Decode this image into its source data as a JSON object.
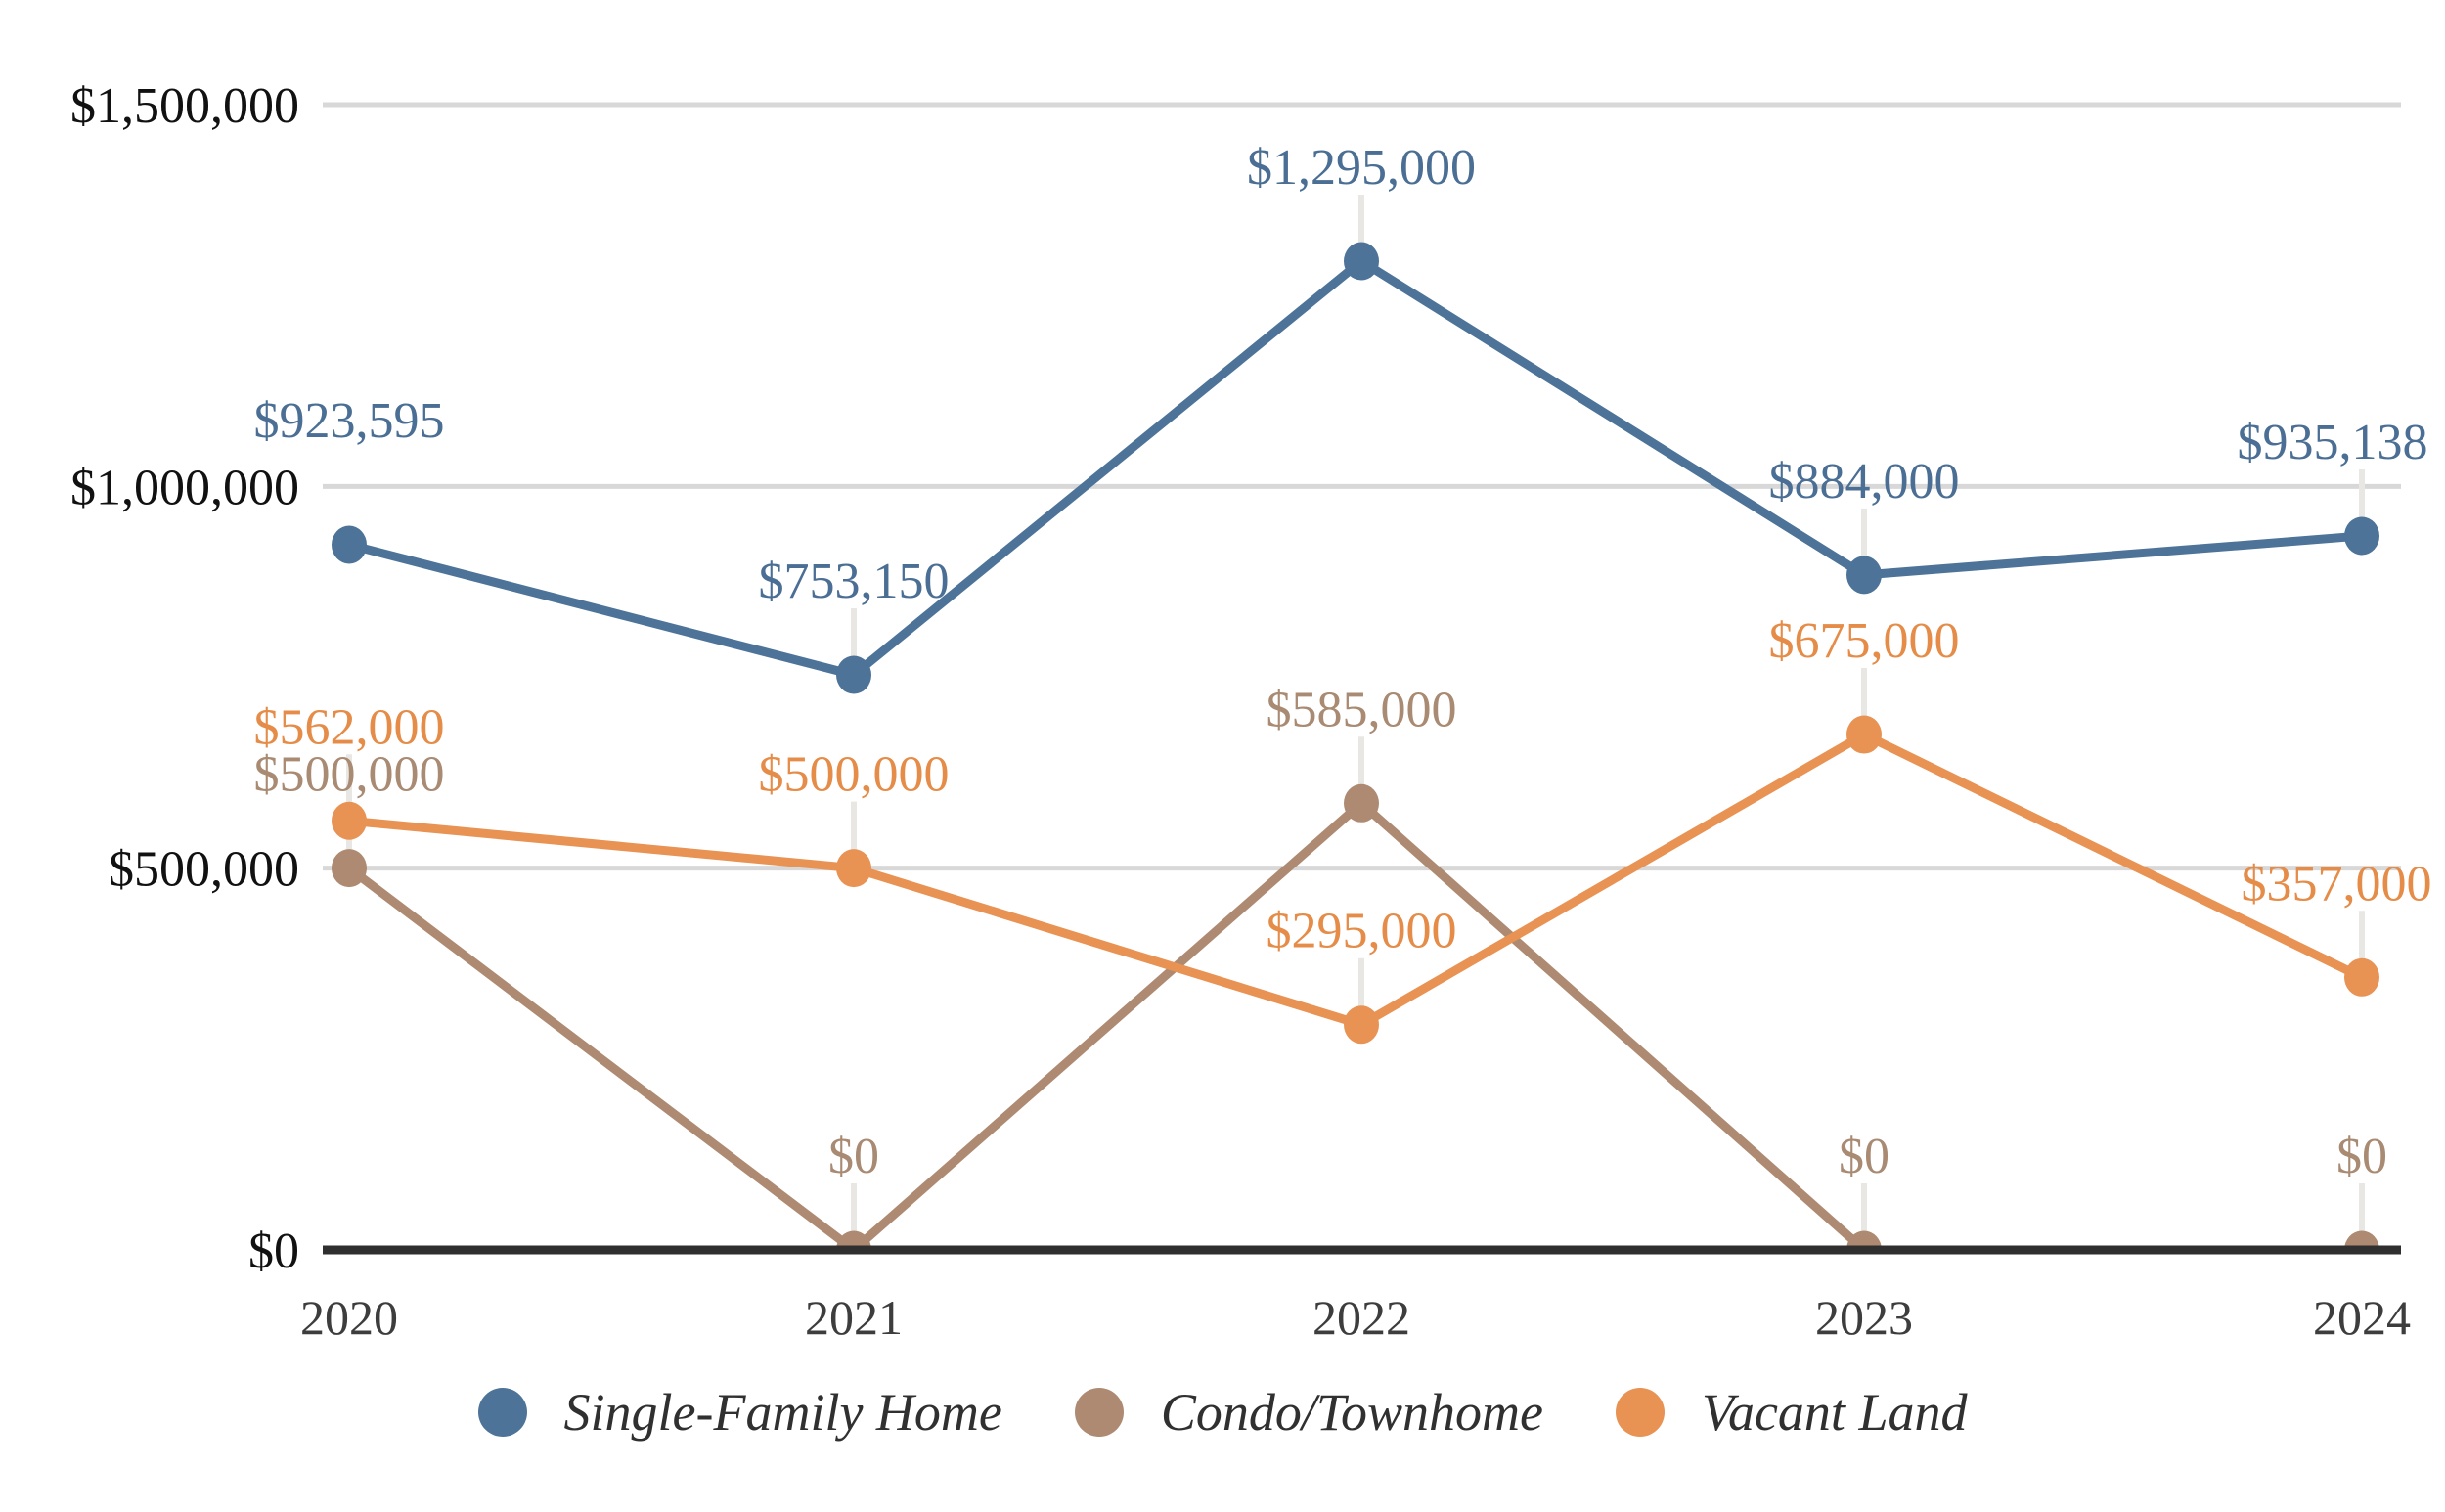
{
  "chart_data": {
    "type": "line",
    "title": "",
    "x_label": "",
    "y_label": "",
    "x": [
      "2020",
      "2021",
      "2022",
      "2023",
      "2024"
    ],
    "series": [
      {
        "name": "Single-Family Home",
        "values": [
          923595,
          753150,
          1295000,
          884000,
          935138
        ],
        "labels": [
          "$923,595",
          "$753,150",
          "$1,295,000",
          "$884,000",
          "$935,138"
        ],
        "color": "#4D7399",
        "label_color": "#4A6E94"
      },
      {
        "name": "Condo/Townhome",
        "values": [
          500000,
          0,
          585000,
          0,
          0
        ],
        "labels": [
          "$500,000",
          "$0",
          "$585,000",
          "$0",
          "$0"
        ],
        "color": "#AD8A71",
        "label_color": "#A98A72"
      },
      {
        "name": "Vacant Land",
        "values": [
          562000,
          500000,
          295000,
          675000,
          357000
        ],
        "labels": [
          "$562,000",
          "$500,000",
          "$295,000",
          "$675,000",
          "$357,000"
        ],
        "color": "#E89254",
        "label_color": "#E58C48"
      }
    ],
    "y_axis": {
      "min": 0,
      "max": 1500000,
      "ticks": [
        {
          "value": 0,
          "label": "$0"
        },
        {
          "value": 500000,
          "label": "$500,000"
        },
        {
          "value": 1000000,
          "label": "$1,000,000"
        },
        {
          "value": 1500000,
          "label": "$1,500,000"
        }
      ]
    },
    "grid": true,
    "legend_position": "bottom",
    "data_labels": true
  },
  "colors": {
    "background": "#FFFFFF",
    "gridline": "#D8D8D8",
    "axis_line": "#2F2F2F",
    "leader_line": "#E9E7E4",
    "tick_text": "#111111",
    "year_text": "#3D3D3D",
    "legend_text": "#303030"
  }
}
